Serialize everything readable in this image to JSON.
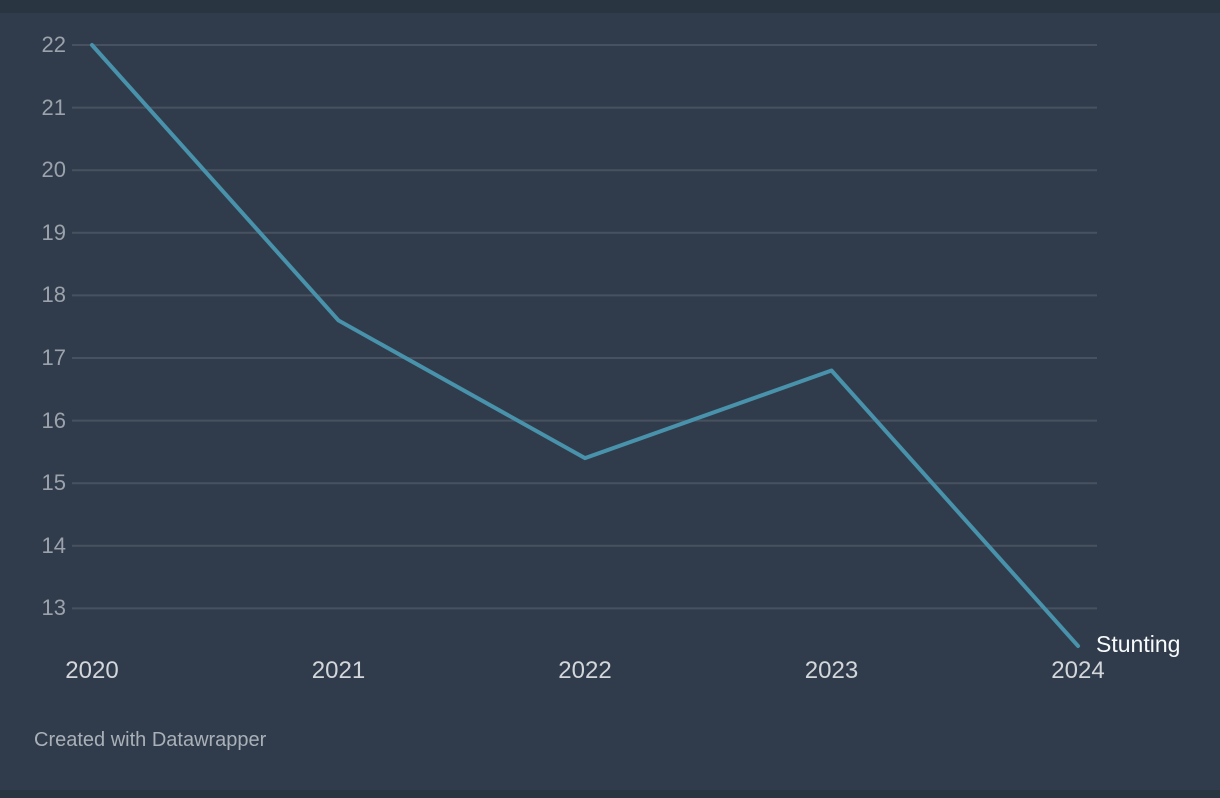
{
  "chart_data": {
    "type": "line",
    "x": [
      "2020",
      "2021",
      "2022",
      "2023",
      "2024"
    ],
    "series": [
      {
        "name": "Stunting",
        "values": [
          22,
          17.6,
          15.4,
          16.8,
          12.4
        ],
        "color": "#4992AB"
      }
    ],
    "y_ticks": [
      22,
      21,
      20,
      19,
      18,
      17,
      16,
      15,
      14,
      13
    ],
    "ylim": [
      12.2,
      22
    ],
    "grid": "horizontal",
    "legend_position": "end-of-line-label"
  },
  "footer": {
    "attribution": "Created with Datawrapper"
  },
  "colors": {
    "background": "#303C4B",
    "edge_strip": "#2A3542",
    "gridline": "#485160",
    "line": "#4992AB",
    "y_tick_label": "#9BA2AB",
    "x_tick_label": "#D3D6DA",
    "series_label": "#F8FAFB",
    "attribution": "#A9B0B8"
  }
}
